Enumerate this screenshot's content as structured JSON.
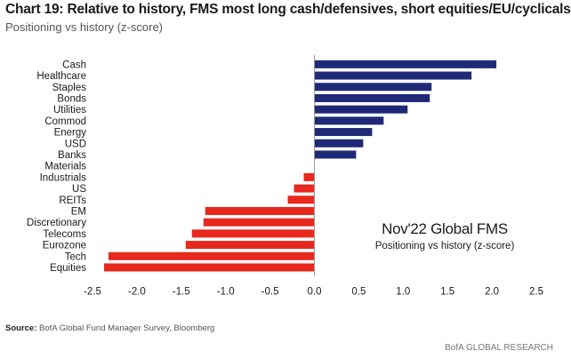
{
  "title": "Chart 19: Relative to history, FMS most long cash/defensives, short equities/EU/cyclicals",
  "subtitle": "Positioning vs history (z-score)",
  "source_label": "Source:",
  "source_text": "BofA Global Fund Manager Survey, Bloomberg",
  "footer": "BofA GLOBAL RESEARCH",
  "colors": {
    "positive": "#1f2a77",
    "negative": "#e8271d",
    "axis": "#999999",
    "text": "#1a1a1a"
  },
  "chart_data": {
    "type": "bar",
    "orientation": "horizontal",
    "categories": [
      "Cash",
      "Healthcare",
      "Staples",
      "Bonds",
      "Utilities",
      "Commod",
      "Energy",
      "USD",
      "Banks",
      "Materials",
      "Industrials",
      "US",
      "REITs",
      "EM",
      "Discretionary",
      "Telecoms",
      "Eurozone",
      "Tech",
      "Equities"
    ],
    "values": [
      2.05,
      1.77,
      1.32,
      1.3,
      1.05,
      0.78,
      0.65,
      0.55,
      0.47,
      0.0,
      -0.12,
      -0.23,
      -0.3,
      -1.23,
      -1.25,
      -1.38,
      -1.45,
      -2.32,
      -2.37
    ],
    "xlim": [
      -2.5,
      2.5
    ],
    "xticks": [
      "-2.5",
      "-2.0",
      "-1.5",
      "-1.0",
      "-0.5",
      "0.0",
      "0.5",
      "1.0",
      "1.5",
      "2.0",
      "2.5"
    ],
    "annotation": {
      "title": "Nov'22 Global FMS",
      "subtitle": "Positioning vs history (z-score)"
    },
    "grid": false
  }
}
